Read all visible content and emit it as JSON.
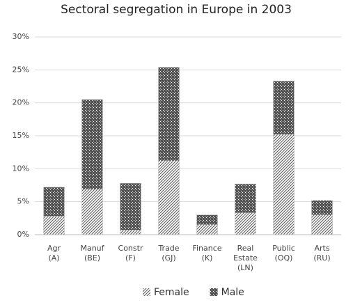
{
  "chart_data": {
    "type": "stacked_bar",
    "title": "Sectoral segregation in Europe in 2003",
    "categories": [
      [
        "Agr",
        "(A)"
      ],
      [
        "Manuf",
        "(BE)"
      ],
      [
        "Constr",
        "(F)"
      ],
      [
        "Trade",
        "(GJ)"
      ],
      [
        "Finance",
        "(K)"
      ],
      [
        "Real",
        "Estate",
        "(LN)"
      ],
      [
        "Public",
        "(OQ)"
      ],
      [
        "Arts",
        "(RU)"
      ]
    ],
    "series": [
      {
        "name": "Female",
        "color": "#555555",
        "pattern": "hatch",
        "values": [
          2.8,
          6.9,
          0.7,
          11.2,
          1.5,
          3.3,
          15.2,
          3.0
        ]
      },
      {
        "name": "Male",
        "color": "#555555",
        "pattern": "dots",
        "values": [
          4.4,
          13.6,
          7.1,
          14.2,
          1.5,
          4.4,
          8.1,
          2.2
        ]
      }
    ],
    "ylim": [
      0,
      30
    ],
    "yticks": [
      {
        "value": 0,
        "label": "0%"
      },
      {
        "value": 5,
        "label": "5%"
      },
      {
        "value": 10,
        "label": "10%"
      },
      {
        "value": 15,
        "label": "15%"
      },
      {
        "value": 20,
        "label": "20%"
      },
      {
        "value": 25,
        "label": "25%"
      },
      {
        "value": 30,
        "label": "30%"
      }
    ],
    "grid": true
  }
}
